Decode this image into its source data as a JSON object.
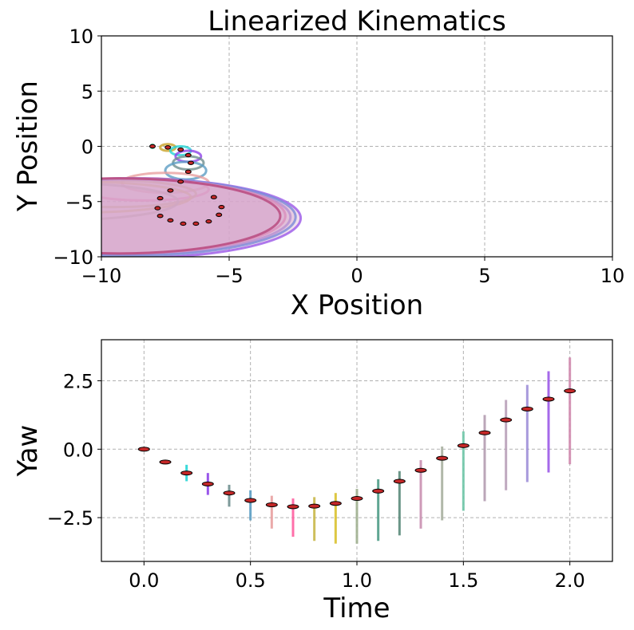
{
  "chart_data": [
    {
      "type": "scatter",
      "title": "Linearized Kinematics",
      "xlabel": "X Position",
      "ylabel": "Y Position",
      "xlim": [
        -10,
        10
      ],
      "ylim": [
        -10,
        10
      ],
      "xticks": [
        "−10",
        "−5",
        "0",
        "5",
        "10"
      ],
      "yticks": [
        "10",
        "5",
        "0",
        "−5",
        "−10"
      ],
      "grid": true,
      "points": [
        {
          "x": -8.0,
          "y": 0.0
        },
        {
          "x": -7.4,
          "y": -0.1
        },
        {
          "x": -6.9,
          "y": -0.3
        },
        {
          "x": -6.6,
          "y": -0.8
        },
        {
          "x": -6.5,
          "y": -1.5
        },
        {
          "x": -6.6,
          "y": -2.3
        },
        {
          "x": -6.9,
          "y": -3.2
        },
        {
          "x": -7.3,
          "y": -4.0
        },
        {
          "x": -7.7,
          "y": -4.7
        },
        {
          "x": -7.8,
          "y": -5.6
        },
        {
          "x": -7.7,
          "y": -6.3
        },
        {
          "x": -7.3,
          "y": -6.7
        },
        {
          "x": -6.8,
          "y": -7.0
        },
        {
          "x": -6.3,
          "y": -7.0
        },
        {
          "x": -5.8,
          "y": -6.8
        },
        {
          "x": -5.4,
          "y": -6.2
        },
        {
          "x": -5.3,
          "y": -5.5
        },
        {
          "x": -5.6,
          "y": -4.6
        }
      ],
      "uncertainty_ellipses": [
        {
          "color": "#3ecf9a",
          "cx": -8.0,
          "cy": 0.0,
          "rx": 0.05,
          "ry": 0.05
        },
        {
          "color": "#c9a227",
          "cx": -7.4,
          "cy": -0.1,
          "rx": 0.3,
          "ry": 0.3
        },
        {
          "color": "#26d5d5",
          "cx": -6.9,
          "cy": -0.4,
          "rx": 0.4,
          "ry": 0.4
        },
        {
          "color": "#8e44e8",
          "cx": -6.6,
          "cy": -0.9,
          "rx": 0.5,
          "ry": 0.5
        },
        {
          "color": "#6f8f8f",
          "cx": -6.6,
          "cy": -1.5,
          "rx": 0.6,
          "ry": 0.6
        },
        {
          "color": "#5c9ec4",
          "cx": -6.7,
          "cy": -2.2,
          "rx": 0.8,
          "ry": 0.8
        },
        {
          "color": "#e8a0a0",
          "cx": -7.5,
          "cy": -3.3,
          "rx": 1.7,
          "ry": 0.9
        },
        {
          "color": "#ff5fa0",
          "cx": -8.3,
          "cy": -3.9,
          "rx": 2.5,
          "ry": 1.0
        },
        {
          "color": "#c9b84a",
          "cx": -9.5,
          "cy": -4.3,
          "rx": 3.2,
          "ry": 1.2
        },
        {
          "color": "#d9c12e",
          "cx": -11.0,
          "cy": -4.6,
          "rx": 4.5,
          "ry": 1.4
        },
        {
          "color": "#a0b090",
          "cx": -12.0,
          "cy": -5.0,
          "rx": 5.0,
          "ry": 1.7
        },
        {
          "color": "#8a6fd8",
          "cx": -9.0,
          "cy": -6.4,
          "rx": 6.4,
          "ry": 3.4
        },
        {
          "color": "#9b59e8",
          "cx": -8.8,
          "cy": -6.5,
          "rx": 6.6,
          "ry": 3.6
        },
        {
          "color": "#7b8bd8",
          "cx": -8.9,
          "cy": -6.4,
          "rx": 6.5,
          "ry": 3.5
        },
        {
          "color": "#d98fbc",
          "cx": -9.2,
          "cy": -6.3,
          "rx": 6.4,
          "ry": 3.4
        },
        {
          "color": "#b7457a",
          "cx": -9.3,
          "cy": -6.3,
          "rx": 6.3,
          "ry": 3.4
        }
      ],
      "colors": {
        "point_face": "#c62828",
        "point_edge": "#000000",
        "grid": "#b0b0b0",
        "fill": "#d8a6cc"
      }
    },
    {
      "type": "scatter",
      "xlabel": "Time",
      "ylabel": "Yaw",
      "xlim": [
        -0.2,
        2.2
      ],
      "ylim": [
        -4.1,
        4.0
      ],
      "xticks": [
        "0.0",
        "0.5",
        "1.0",
        "1.5",
        "2.0"
      ],
      "yticks": [
        "2.5",
        "0.0",
        "−2.5"
      ],
      "grid": true,
      "x": [
        0.0,
        0.1,
        0.2,
        0.3,
        0.4,
        0.5,
        0.6,
        0.7,
        0.8,
        0.9,
        1.0,
        1.1,
        1.2,
        1.3,
        1.4,
        1.5,
        1.6,
        1.7,
        1.8,
        1.9,
        2.0
      ],
      "y": [
        0.0,
        -0.47,
        -0.87,
        -1.27,
        -1.6,
        -1.87,
        -2.03,
        -2.1,
        -2.08,
        -1.98,
        -1.8,
        -1.53,
        -1.17,
        -0.77,
        -0.33,
        0.13,
        0.6,
        1.07,
        1.47,
        1.83,
        2.13
      ],
      "error_bars": [
        {
          "low": -0.05,
          "high": 0.05,
          "color": "#3ecf9a"
        },
        {
          "low": -0.55,
          "high": -0.4,
          "color": "#c9a227"
        },
        {
          "low": -1.17,
          "high": -0.57,
          "color": "#26d5d5"
        },
        {
          "low": -1.67,
          "high": -0.87,
          "color": "#8e44e8"
        },
        {
          "low": -2.1,
          "high": -1.3,
          "color": "#6f8f8f"
        },
        {
          "low": -2.6,
          "high": -1.5,
          "color": "#5c9ec4"
        },
        {
          "low": -2.9,
          "high": -1.7,
          "color": "#e8a0a0"
        },
        {
          "low": -3.2,
          "high": -1.8,
          "color": "#ff5fa0"
        },
        {
          "low": -3.35,
          "high": -1.75,
          "color": "#c9b84a"
        },
        {
          "low": -3.45,
          "high": -1.6,
          "color": "#d9c12e"
        },
        {
          "low": -3.45,
          "high": -1.45,
          "color": "#a0b090"
        },
        {
          "low": -3.35,
          "high": -1.1,
          "color": "#4f9c87"
        },
        {
          "low": -3.15,
          "high": -0.8,
          "color": "#5a8a7a"
        },
        {
          "low": -2.9,
          "high": -0.4,
          "color": "#c98fb0"
        },
        {
          "low": -2.6,
          "high": 0.1,
          "color": "#a9b0a0"
        },
        {
          "low": -2.25,
          "high": 0.65,
          "color": "#6fc7a7"
        },
        {
          "low": -1.9,
          "high": 1.25,
          "color": "#b49cb0"
        },
        {
          "low": -1.5,
          "high": 1.8,
          "color": "#b8a0b8"
        },
        {
          "low": -1.2,
          "high": 2.35,
          "color": "#9f8fd8"
        },
        {
          "low": -0.85,
          "high": 2.85,
          "color": "#9b59e8"
        },
        {
          "low": -0.55,
          "high": 3.35,
          "color": "#d08aae"
        }
      ],
      "colors": {
        "point_face": "#c62828",
        "point_edge": "#000000",
        "grid": "#b0b0b0"
      }
    }
  ]
}
